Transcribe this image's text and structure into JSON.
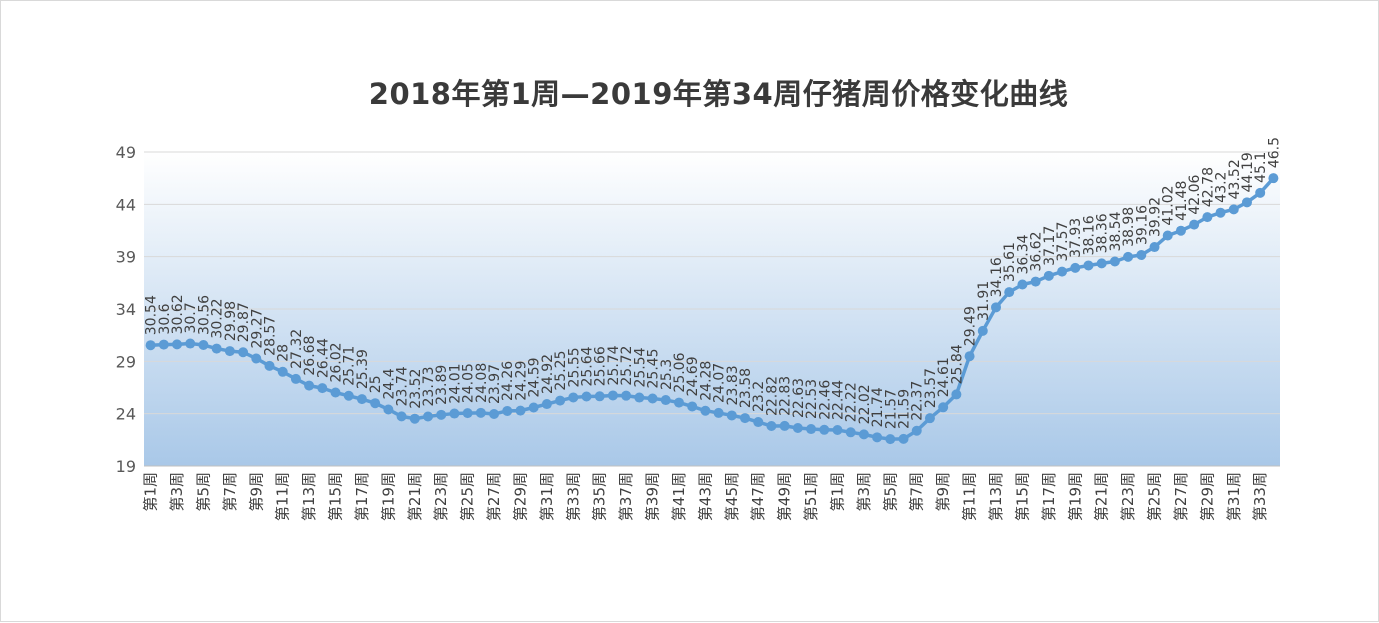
{
  "chart_data": {
    "type": "line",
    "title": "2018年第1周—2019年第34周仔猪周价格变化曲线",
    "xlabel": "",
    "ylabel": "",
    "ylim": [
      19,
      49
    ],
    "yticks": [
      19,
      24,
      29,
      34,
      39,
      44,
      49
    ],
    "grid": true,
    "legend": "none",
    "colors": {
      "line": "#5b9bd5",
      "grid": "#d9d9d9",
      "bg_top": "#ffffff",
      "bg_bottom": "#a9c8e8"
    },
    "categories": [
      "第1周",
      "第2周",
      "第3周",
      "第4周",
      "第5周",
      "第6周",
      "第7周",
      "第8周",
      "第9周",
      "第10周",
      "第11周",
      "第12周",
      "第13周",
      "第14周",
      "第15周",
      "第16周",
      "第17周",
      "第18周",
      "第19周",
      "第20周",
      "第21周",
      "第22周",
      "第23周",
      "第24周",
      "第25周",
      "第26周",
      "第27周",
      "第28周",
      "第29周",
      "第30周",
      "第31周",
      "第32周",
      "第33周",
      "第34周",
      "第35周",
      "第36周",
      "第37周",
      "第38周",
      "第39周",
      "第40周",
      "第41周",
      "第42周",
      "第43周",
      "第44周",
      "第45周",
      "第46周",
      "第47周",
      "第48周",
      "第49周",
      "第50周",
      "第51周",
      "第52周",
      "第1周",
      "第2周",
      "第3周",
      "第4周",
      "第5周",
      "第6周",
      "第7周",
      "第8周",
      "第9周",
      "第10周",
      "第11周",
      "第12周",
      "第13周",
      "第14周",
      "第15周",
      "第16周",
      "第17周",
      "第18周",
      "第19周",
      "第20周",
      "第21周",
      "第22周",
      "第23周",
      "第24周",
      "第25周",
      "第26周",
      "第27周",
      "第28周",
      "第29周",
      "第30周",
      "第31周",
      "第32周",
      "第33周",
      "第34周"
    ],
    "series": [
      {
        "name": "",
        "values": [
          30.54,
          30.6,
          30.62,
          30.7,
          30.56,
          30.22,
          29.98,
          29.87,
          29.27,
          28.57,
          28.0,
          27.32,
          26.68,
          26.44,
          26.02,
          25.71,
          25.39,
          25.0,
          24.4,
          23.74,
          23.52,
          23.73,
          23.89,
          24.01,
          24.05,
          24.08,
          23.97,
          24.26,
          24.29,
          24.59,
          24.92,
          25.25,
          25.55,
          25.64,
          25.66,
          25.74,
          25.72,
          25.54,
          25.45,
          25.3,
          25.06,
          24.69,
          24.28,
          24.07,
          23.83,
          23.58,
          23.2,
          22.82,
          22.83,
          22.63,
          22.53,
          22.46,
          22.44,
          22.22,
          22.02,
          21.74,
          21.57,
          21.59,
          22.37,
          23.57,
          24.61,
          25.84,
          29.49,
          31.91,
          34.16,
          35.61,
          36.34,
          36.62,
          37.17,
          37.57,
          37.93,
          38.16,
          38.36,
          38.54,
          38.98,
          39.16,
          39.92,
          41.02,
          41.48,
          42.06,
          42.78,
          43.2,
          43.52,
          44.19,
          45.1,
          46.5
        ],
        "labels": [
          "30.54",
          "30.6",
          "30.62",
          "30.7",
          "30.56",
          "30.22",
          "29.98",
          "29.87",
          "29.27",
          "28.57",
          "28",
          "27.32",
          "26.68",
          "26.44",
          "26.02",
          "25.71",
          "25.39",
          "25",
          "24.4",
          "23.74",
          "23.52",
          "23.73",
          "23.89",
          "24.01",
          "24.05",
          "24.08",
          "23.97",
          "24.26",
          "24.29",
          "24.59",
          "24.92",
          "25.25",
          "25.55",
          "25.64",
          "25.66",
          "25.74",
          "25.72",
          "25.54",
          "25.45",
          "25.3",
          "25.06",
          "24.69",
          "24.28",
          "24.07",
          "23.83",
          "23.58",
          "23.2",
          "22.82",
          "22.83",
          "22.63",
          "22.53",
          "22.46",
          "22.44",
          "22.22",
          "22.02",
          "21.74",
          "21.57",
          "21.59",
          "22.37",
          "23.57",
          "24.61",
          "25.84",
          "29.49",
          "31.91",
          "34.16",
          "35.61",
          "36.34",
          "36.62",
          "37.17",
          "37.57",
          "37.93",
          "38.16",
          "38.36",
          "38.54",
          "38.98",
          "39.16",
          "39.92",
          "41.02",
          "41.48",
          "42.06",
          "42.78",
          "43.2",
          "43.52",
          "44.19",
          "45.1",
          "46.5"
        ]
      }
    ]
  }
}
